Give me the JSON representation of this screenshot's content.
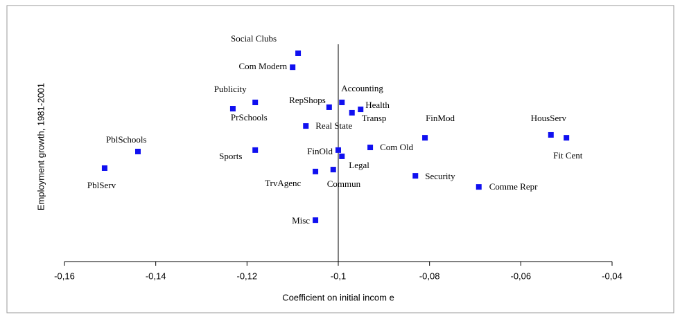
{
  "chart_data": {
    "type": "scatter",
    "x_label": "Coefficient on initial incom e",
    "y_label": "Employment growth, 1981-2001",
    "xlim": [
      -0.16,
      -0.04
    ],
    "ylim": [
      0,
      100
    ],
    "xticks": [
      {
        "value": -0.16,
        "label": "-0,16"
      },
      {
        "value": -0.14,
        "label": "-0,14"
      },
      {
        "value": -0.12,
        "label": "-0,12"
      },
      {
        "value": -0.1,
        "label": "-0,1"
      },
      {
        "value": -0.08,
        "label": "-0,08"
      },
      {
        "value": -0.06,
        "label": "-0,06"
      },
      {
        "value": -0.04,
        "label": "-0,04"
      }
    ],
    "y_axis_crossing": -0.1,
    "color": "#1010f0",
    "points": {
      "labels": [
        "Social Clubs",
        "Com Modern",
        "Publicity",
        "PrSchools",
        "RepShops",
        "Accounting",
        "Health",
        "Transp",
        "Real State",
        "FinMod",
        "HousServ",
        "Fit Cent",
        "PblSchools",
        "PblServ",
        "Sports",
        "FinOld",
        "Legal",
        "Com Old",
        "TrvAgenc",
        "Commun",
        "Security",
        "Comme Repr",
        "Misc"
      ],
      "x": [
        -0.1088,
        -0.11,
        -0.1182,
        -0.1231,
        -0.102,
        -0.0992,
        -0.0951,
        -0.097,
        -0.1071,
        -0.081,
        -0.0534,
        -0.05,
        -0.1439,
        -0.1512,
        -0.1182,
        -0.1,
        -0.0992,
        -0.093,
        -0.105,
        -0.1011,
        -0.0831,
        -0.0692,
        -0.105
      ],
      "y": [
        86.5,
        80.7,
        66.1,
        63.5,
        64.1,
        66.1,
        63.2,
        61.8,
        56.3,
        51.4,
        52.6,
        51.4,
        45.7,
        38.8,
        46.3,
        46.3,
        43.7,
        47.4,
        37.4,
        38.2,
        35.6,
        31.0,
        17.2
      ]
    }
  }
}
